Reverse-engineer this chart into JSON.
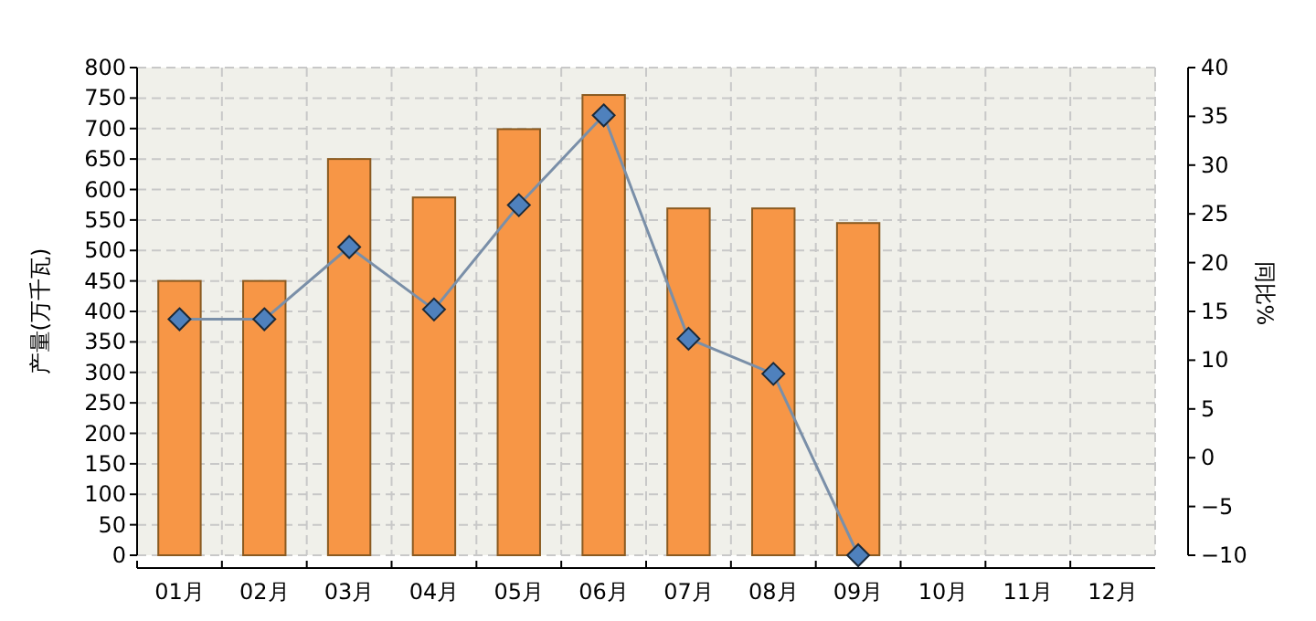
{
  "chart_data": {
    "type": "bar",
    "categories": [
      "01月",
      "02月",
      "03月",
      "04月",
      "05月",
      "06月",
      "07月",
      "08月",
      "09月",
      "10月",
      "11月",
      "12月"
    ],
    "ylabel": "产量(万千瓦)",
    "y2label": "同比%",
    "ylim": [
      0,
      800
    ],
    "yticks": [
      0,
      50,
      100,
      150,
      200,
      250,
      300,
      350,
      400,
      450,
      500,
      550,
      600,
      650,
      700,
      750,
      800
    ],
    "y2lim": [
      -10,
      40
    ],
    "y2ticks": [
      -10,
      -5,
      0,
      5,
      10,
      15,
      20,
      25,
      30,
      35,
      40
    ],
    "grid": true,
    "marker": "diamond",
    "series": [
      {
        "color": "#f79646",
        "values": [
          450,
          450,
          650,
          587,
          699,
          755,
          569,
          569,
          545,
          null,
          null,
          null
        ]
      },
      {
        "type": "line",
        "axis": "y2",
        "color": "#4f81bd",
        "values": [
          14.2,
          14.2,
          21.6,
          15.2,
          25.9,
          35.1,
          12.2,
          8.6,
          -10.0,
          null,
          null,
          null
        ]
      }
    ]
  }
}
